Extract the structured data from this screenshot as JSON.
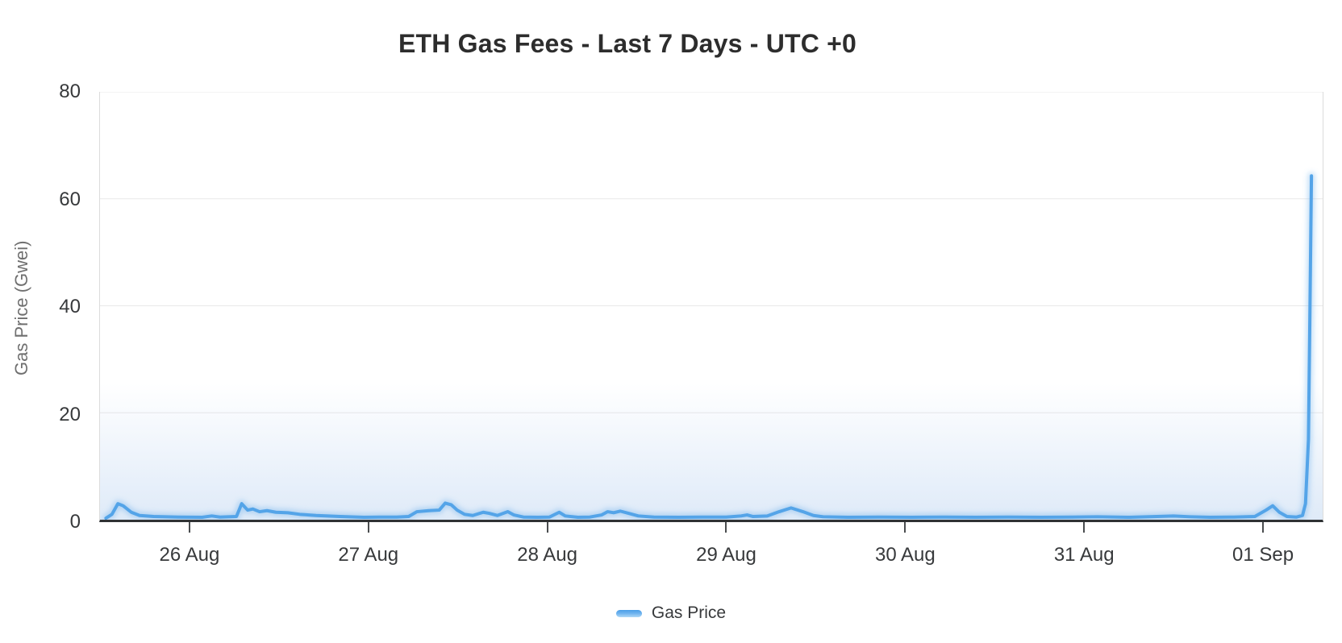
{
  "chart": {
    "title": "ETH Gas Fees - Last 7 Days - UTC +0",
    "y_axis": {
      "label": "Gas Price (Gwei)",
      "ticks": [
        "0",
        "20",
        "40",
        "60",
        "80"
      ]
    },
    "x_axis": {
      "ticks": [
        "26 Aug",
        "27 Aug",
        "28 Aug",
        "29 Aug",
        "30 Aug",
        "31 Aug",
        "01 Sep"
      ]
    },
    "legend": {
      "label": "Gas Price"
    }
  },
  "colors": {
    "line": "#54a4e8",
    "line_glow": "rgba(84,164,232,0.35)",
    "haze_fill": "rgba(148,186,232,0.30)",
    "grid": "#e9e9e9",
    "axis": "#2f3234",
    "tick_text": "#37393b",
    "axis_title_text": "#6f6f6f",
    "title_text": "#2d2d2d"
  },
  "chart_data": {
    "type": "line",
    "title": "ETH Gas Fees - Last 7 Days - UTC +0",
    "ylabel": "Gas Price (Gwei)",
    "ylim": [
      0,
      80
    ],
    "yticks": [
      0,
      20,
      40,
      60,
      80
    ],
    "grid": "horizontal gridlines only, light gray; dark bottom axis with day tick marks",
    "legend_position": "bottom center",
    "x_unit": "hours from chart start (chart spans ~25 Aug 12:00 to 01 Sep 08:00 UTC)",
    "x_range_hours": [
      0,
      164
    ],
    "xtick_hours": [
      12,
      36,
      60,
      84,
      108,
      132,
      156
    ],
    "xtick_labels": [
      "26 Aug",
      "27 Aug",
      "28 Aug",
      "29 Aug",
      "30 Aug",
      "31 Aug",
      "01 Sep"
    ],
    "peak_gwei": 64.3,
    "series": [
      {
        "name": "Gas Price",
        "points": [
          [
            0.8,
            0.3
          ],
          [
            1.6,
            1.0
          ],
          [
            2.4,
            3.0
          ],
          [
            3.1,
            2.6
          ],
          [
            4.2,
            1.4
          ],
          [
            5.3,
            0.8
          ],
          [
            7.2,
            0.6
          ],
          [
            10.5,
            0.5
          ],
          [
            13.7,
            0.45
          ],
          [
            15.0,
            0.7
          ],
          [
            16.1,
            0.5
          ],
          [
            18.3,
            0.6
          ],
          [
            19.0,
            3.0
          ],
          [
            19.8,
            1.8
          ],
          [
            20.5,
            2.0
          ],
          [
            21.4,
            1.5
          ],
          [
            22.4,
            1.7
          ],
          [
            23.6,
            1.4
          ],
          [
            25.2,
            1.3
          ],
          [
            26.8,
            1.0
          ],
          [
            29.0,
            0.8
          ],
          [
            32.2,
            0.6
          ],
          [
            35.4,
            0.45
          ],
          [
            37.6,
            0.5
          ],
          [
            39.8,
            0.5
          ],
          [
            41.4,
            0.6
          ],
          [
            42.5,
            1.5
          ],
          [
            44.1,
            1.7
          ],
          [
            45.5,
            1.8
          ],
          [
            46.3,
            3.1
          ],
          [
            47.1,
            2.8
          ],
          [
            47.9,
            1.8
          ],
          [
            48.9,
            1.0
          ],
          [
            50.0,
            0.8
          ],
          [
            51.4,
            1.4
          ],
          [
            52.2,
            1.2
          ],
          [
            53.3,
            0.8
          ],
          [
            54.7,
            1.5
          ],
          [
            55.5,
            0.9
          ],
          [
            56.8,
            0.5
          ],
          [
            58.7,
            0.45
          ],
          [
            60.3,
            0.5
          ],
          [
            61.6,
            1.4
          ],
          [
            62.4,
            0.7
          ],
          [
            64.1,
            0.45
          ],
          [
            65.7,
            0.5
          ],
          [
            67.3,
            0.9
          ],
          [
            68.1,
            1.5
          ],
          [
            68.9,
            1.3
          ],
          [
            69.8,
            1.6
          ],
          [
            70.9,
            1.2
          ],
          [
            72.2,
            0.7
          ],
          [
            74.3,
            0.5
          ],
          [
            77.6,
            0.45
          ],
          [
            80.8,
            0.5
          ],
          [
            84.0,
            0.5
          ],
          [
            86.0,
            0.7
          ],
          [
            86.8,
            0.9
          ],
          [
            87.6,
            0.6
          ],
          [
            89.5,
            0.7
          ],
          [
            91.1,
            1.5
          ],
          [
            92.7,
            2.2
          ],
          [
            94.3,
            1.5
          ],
          [
            95.7,
            0.8
          ],
          [
            97.0,
            0.55
          ],
          [
            100.3,
            0.45
          ],
          [
            104.6,
            0.5
          ],
          [
            108.9,
            0.45
          ],
          [
            113.2,
            0.5
          ],
          [
            117.5,
            0.45
          ],
          [
            121.9,
            0.5
          ],
          [
            126.2,
            0.45
          ],
          [
            130.5,
            0.5
          ],
          [
            133.8,
            0.55
          ],
          [
            138.1,
            0.45
          ],
          [
            141.8,
            0.6
          ],
          [
            144.0,
            0.7
          ],
          [
            146.2,
            0.55
          ],
          [
            148.9,
            0.45
          ],
          [
            152.1,
            0.5
          ],
          [
            154.9,
            0.6
          ],
          [
            156.4,
            1.8
          ],
          [
            157.3,
            2.6
          ],
          [
            158.2,
            1.4
          ],
          [
            159.2,
            0.6
          ],
          [
            160.5,
            0.5
          ],
          [
            161.3,
            0.8
          ],
          [
            161.7,
            3.0
          ],
          [
            162.1,
            15.0
          ],
          [
            162.3,
            40.0
          ],
          [
            162.5,
            64.3
          ]
        ]
      }
    ]
  }
}
